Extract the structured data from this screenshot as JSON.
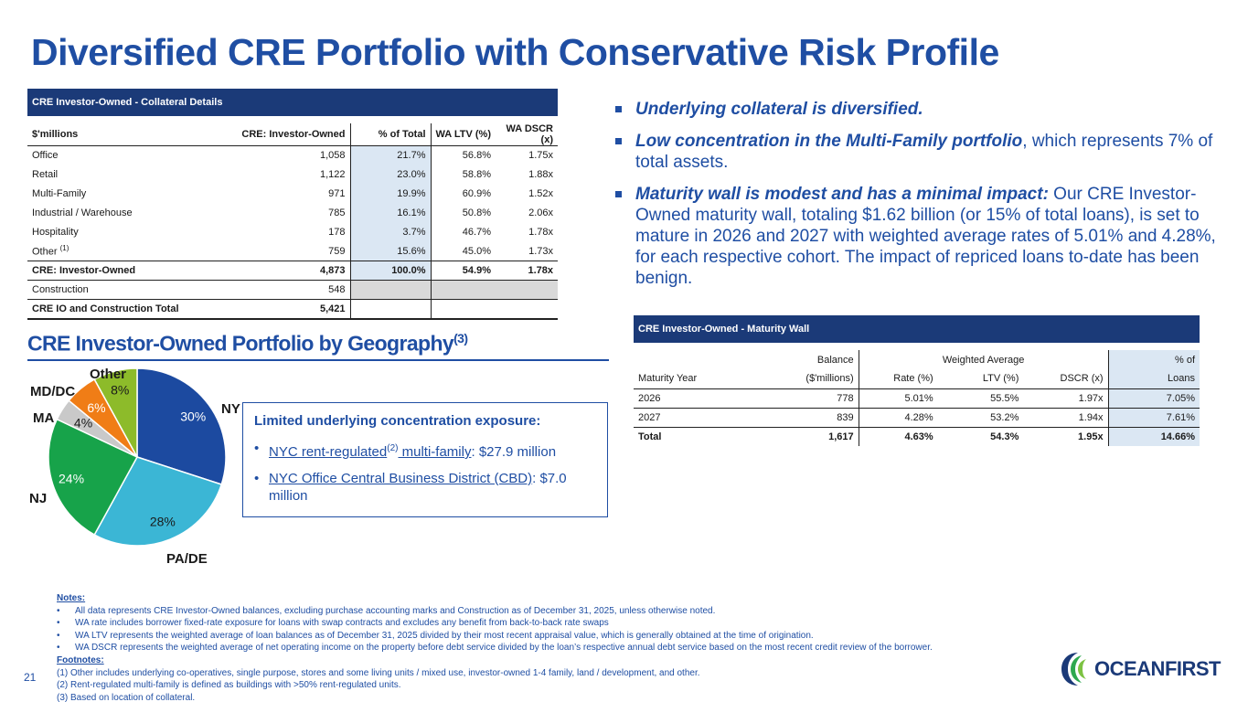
{
  "title": "Diversified CRE Portfolio with Conservative Risk Profile",
  "collateral_table": {
    "caption": "CRE Investor-Owned - Collateral Details",
    "headers": [
      "$'millions",
      "CRE: Investor-Owned",
      "% of Total",
      "WA LTV (%)",
      "WA DSCR (x)"
    ],
    "rows": [
      {
        "label": "Office",
        "value": "1,058",
        "pct": "21.7%",
        "ltv": "56.8%",
        "dscr": "1.75x"
      },
      {
        "label": "Retail",
        "value": "1,122",
        "pct": "23.0%",
        "ltv": "58.8%",
        "dscr": "1.88x"
      },
      {
        "label": "Multi-Family",
        "value": "971",
        "pct": "19.9%",
        "ltv": "60.9%",
        "dscr": "1.52x"
      },
      {
        "label": "Industrial / Warehouse",
        "value": "785",
        "pct": "16.1%",
        "ltv": "50.8%",
        "dscr": "2.06x"
      },
      {
        "label": "Hospitality",
        "value": "178",
        "pct": "3.7%",
        "ltv": "46.7%",
        "dscr": "1.78x"
      },
      {
        "label": "Other",
        "label_sup": "(1)",
        "value": "759",
        "pct": "15.6%",
        "ltv": "45.0%",
        "dscr": "1.73x"
      }
    ],
    "total": {
      "label": "CRE: Investor-Owned",
      "value": "4,873",
      "pct": "100.0%",
      "ltv": "54.9%",
      "dscr": "1.78x"
    },
    "construction": {
      "label": "Construction",
      "value": "548"
    },
    "grand_total": {
      "label": "CRE IO and Construction Total",
      "value": "5,421"
    }
  },
  "bullets": [
    {
      "bold": "Underlying collateral is diversified.",
      "text": ""
    },
    {
      "bold": "Low concentration in the Multi-Family portfolio",
      "text": ", which represents 7% of total assets."
    },
    {
      "bold": "Maturity wall is modest and has a minimal impact:",
      "text": " Our CRE Investor-Owned maturity wall, totaling $1.62 billion (or 15% of total loans), is set to mature in 2026 and 2027 with weighted average rates of 5.01% and 4.28%, for each respective cohort. The impact of repriced loans to-date has been benign."
    }
  ],
  "maturity_table": {
    "caption": "CRE Investor-Owned - Maturity Wall",
    "group_headers": {
      "balance": "Balance",
      "weighted": "Weighted Average",
      "pct": "% of"
    },
    "headers": [
      "Maturity Year",
      "($'millions)",
      "Rate (%)",
      "LTV (%)",
      "DSCR (x)",
      "Loans"
    ],
    "rows": [
      {
        "year": "2026",
        "balance": "778",
        "rate": "5.01%",
        "ltv": "55.5%",
        "dscr": "1.97x",
        "loans": "7.05%"
      },
      {
        "year": "2027",
        "balance": "839",
        "rate": "4.28%",
        "ltv": "53.2%",
        "dscr": "1.94x",
        "loans": "7.61%"
      }
    ],
    "total": {
      "year": "Total",
      "balance": "1,617",
      "rate": "4.63%",
      "ltv": "54.3%",
      "dscr": "1.95x",
      "loans": "14.66%"
    }
  },
  "geo": {
    "title": "CRE Investor-Owned Portfolio by Geography",
    "title_sup": "(3)"
  },
  "chart_data": {
    "type": "pie",
    "title": "CRE Investor-Owned Portfolio by Geography",
    "categories": [
      "NY",
      "PA/DE",
      "NJ",
      "MA",
      "MD/DC",
      "Other"
    ],
    "values": [
      30,
      28,
      24,
      4,
      6,
      8
    ],
    "labels": [
      "30%",
      "28%",
      "24%",
      "4%",
      "6%",
      "8%"
    ],
    "colors": [
      "#1c4aa0",
      "#3bb6d5",
      "#17a34a",
      "#c9c9c9",
      "#f07d16",
      "#8dbb2a"
    ]
  },
  "concentration": {
    "heading": "Limited underlying concentration exposure:",
    "item1_link": "NYC rent-regulated",
    "item1_sup": "(2)",
    "item1_link2": " multi-family",
    "item1_rest": ": $27.9 million",
    "item2_link": "NYC Office Central Business District (CBD)",
    "item2_rest": ": $7.0 million"
  },
  "notes": {
    "heading": "Notes:",
    "items": [
      "All data represents CRE Investor-Owned balances, excluding purchase accounting marks and Construction as of December 31, 2025, unless otherwise noted.",
      "WA rate includes borrower fixed-rate exposure for loans with swap contracts and excludes any benefit from back-to-back rate swaps",
      "WA LTV represents the weighted average of loan balances as of December 31, 2025 divided by their most recent appraisal value, which is generally obtained at the time of origination.",
      "WA DSCR represents the weighted average of net operating income on the property before debt service divided by the loan’s respective annual debt service based on the most recent credit review of the borrower."
    ],
    "footnotes_heading": "Footnotes:",
    "footnotes": [
      "(1)  Other includes underlying co-operatives, single purpose, stores and some living units / mixed use, investor-owned 1-4 family, land / development, and other.",
      "(2)  Rent-regulated multi-family is defined as buildings with >50% rent-regulated units.",
      "(3)  Based on location of collateral."
    ]
  },
  "page_number": "21",
  "logo": {
    "text": "OCEANFIRST",
    "colors": {
      "navy": "#1b3a78",
      "green": "#2ea84f"
    }
  }
}
